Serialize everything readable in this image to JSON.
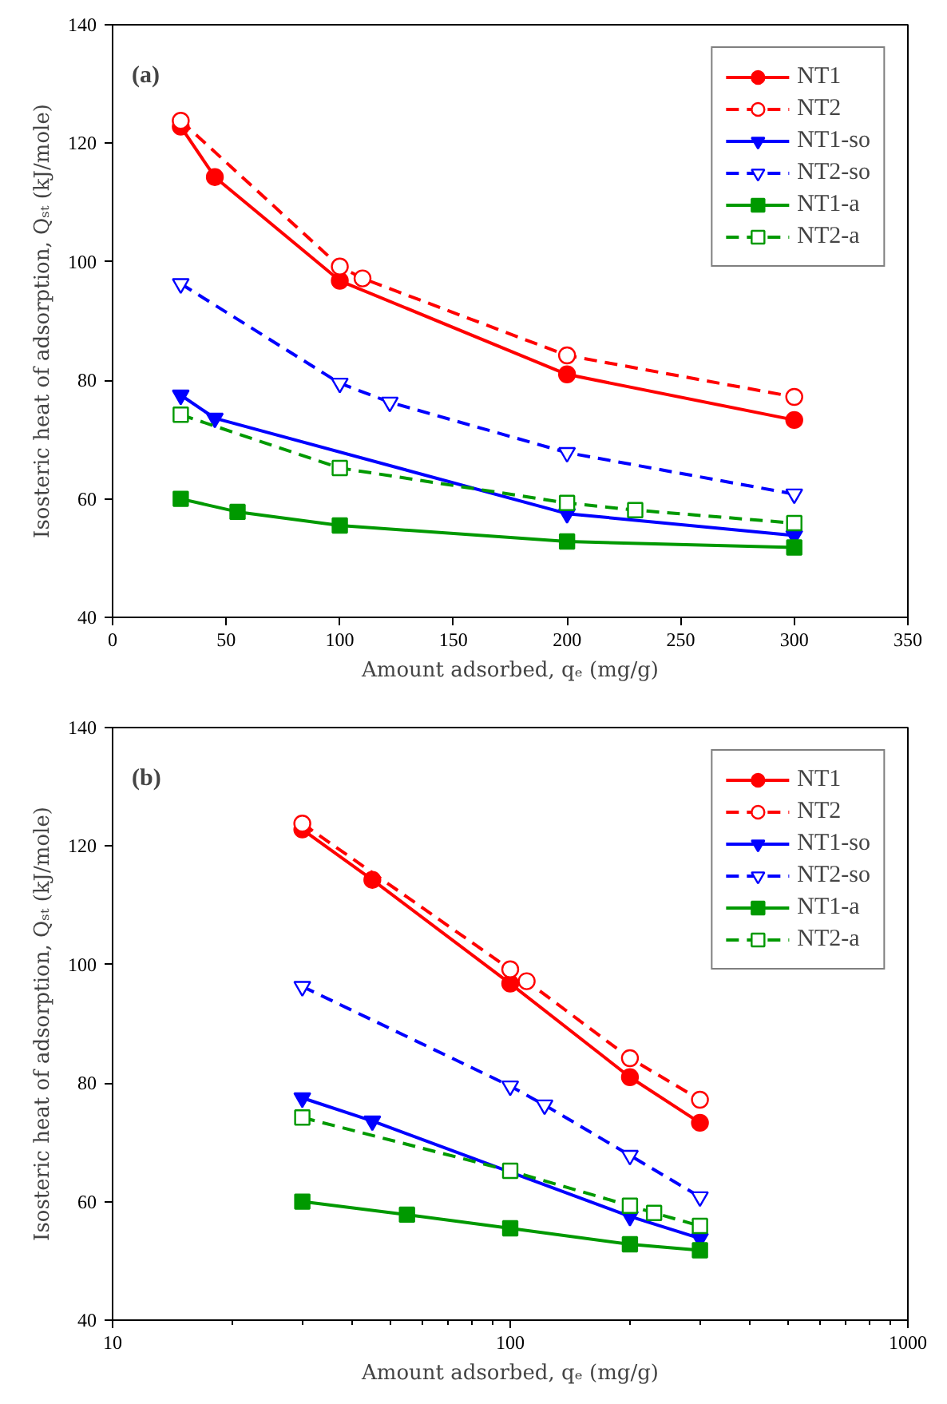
{
  "chart_data": [
    {
      "type": "line",
      "annotations": [
        "(a)"
      ],
      "xlabel": "Amount adsorbed, qₑ (mg/g)",
      "ylabel": "Isosteric heat of adsorption, Qₛₜ (kJ/mole)",
      "xlim": [
        0,
        350
      ],
      "xticks": [
        0,
        50,
        100,
        150,
        200,
        250,
        300,
        350
      ],
      "ylim": [
        40,
        140
      ],
      "yticks": [
        40,
        60,
        80,
        100,
        120,
        140
      ],
      "grid": false,
      "legend": "top right",
      "series": [
        {
          "name": "NT1",
          "color": "#ff0000",
          "marker": "circle",
          "line_style": "solid",
          "x": [
            30,
            45,
            100,
            200,
            300
          ],
          "values": [
            122.8,
            114.3,
            96.8,
            81.0,
            73.3
          ]
        },
        {
          "name": "NT2",
          "color": "#ff0000",
          "marker": "circle_open",
          "line_style": "dashed",
          "x": [
            30,
            100,
            110,
            200,
            300
          ],
          "values": [
            123.8,
            99.2,
            97.2,
            84.2,
            77.2
          ]
        },
        {
          "name": "NT1-so",
          "color": "#0000ff",
          "marker": "triangle",
          "line_style": "solid",
          "x": [
            30,
            45,
            200,
            300
          ],
          "values": [
            77.5,
            73.6,
            57.5,
            53.8
          ]
        },
        {
          "name": "NT2-so",
          "color": "#0000ff",
          "marker": "triangle_open",
          "line_style": "dashed",
          "x": [
            30,
            100,
            122,
            200,
            300
          ],
          "values": [
            96.3,
            79.5,
            76.3,
            67.8,
            60.8
          ]
        },
        {
          "name": "NT1-a",
          "color": "#009900",
          "marker": "square",
          "line_style": "solid",
          "x": [
            30,
            55,
            100,
            200,
            300
          ],
          "values": [
            60.0,
            57.8,
            55.5,
            52.8,
            51.8
          ]
        },
        {
          "name": "NT2-a",
          "color": "#009900",
          "marker": "square_open",
          "line_style": "dashed",
          "x": [
            30,
            100,
            200,
            230,
            300
          ],
          "values": [
            74.2,
            65.2,
            59.3,
            58.1,
            55.9
          ]
        }
      ]
    },
    {
      "type": "line",
      "annotations": [
        "(b)"
      ],
      "xlabel": "Amount adsorbed, qₑ (mg/g)",
      "ylabel": "Isosteric heat of adsorption, Qₛₜ (kJ/mole)",
      "log": "x",
      "xlim": [
        10,
        1000
      ],
      "xticks": [
        10,
        100,
        1000
      ],
      "ylim": [
        40,
        140
      ],
      "yticks": [
        40,
        60,
        80,
        100,
        120,
        140
      ],
      "grid": false,
      "legend": "top right",
      "series": [
        {
          "name": "NT1",
          "color": "#ff0000",
          "marker": "circle",
          "line_style": "solid",
          "x": [
            30,
            45,
            100,
            200,
            300
          ],
          "values": [
            122.8,
            114.3,
            96.8,
            81.0,
            73.3
          ]
        },
        {
          "name": "NT2",
          "color": "#ff0000",
          "marker": "circle_open",
          "line_style": "dashed",
          "x": [
            30,
            100,
            110,
            200,
            300
          ],
          "values": [
            123.8,
            99.2,
            97.2,
            84.2,
            77.2
          ]
        },
        {
          "name": "NT1-so",
          "color": "#0000ff",
          "marker": "triangle",
          "line_style": "solid",
          "x": [
            30,
            45,
            200,
            300
          ],
          "values": [
            77.5,
            73.6,
            57.5,
            53.8
          ]
        },
        {
          "name": "NT2-so",
          "color": "#0000ff",
          "marker": "triangle_open",
          "line_style": "dashed",
          "x": [
            30,
            100,
            122,
            200,
            300
          ],
          "values": [
            96.3,
            79.5,
            76.3,
            67.8,
            60.8
          ]
        },
        {
          "name": "NT1-a",
          "color": "#009900",
          "marker": "square",
          "line_style": "solid",
          "x": [
            30,
            55,
            100,
            200,
            300
          ],
          "values": [
            60.0,
            57.8,
            55.5,
            52.8,
            51.8
          ]
        },
        {
          "name": "NT2-a",
          "color": "#009900",
          "marker": "square_open",
          "line_style": "dashed",
          "x": [
            30,
            100,
            200,
            230,
            300
          ],
          "values": [
            74.2,
            65.2,
            59.3,
            58.1,
            55.9
          ]
        }
      ]
    }
  ]
}
